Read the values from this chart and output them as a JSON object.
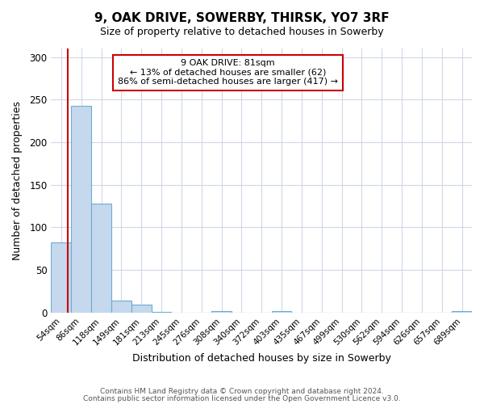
{
  "title": "9, OAK DRIVE, SOWERBY, THIRSK, YO7 3RF",
  "subtitle": "Size of property relative to detached houses in Sowerby",
  "xlabel": "Distribution of detached houses by size in Sowerby",
  "ylabel": "Number of detached properties",
  "bar_labels": [
    "54sqm",
    "86sqm",
    "118sqm",
    "149sqm",
    "181sqm",
    "213sqm",
    "245sqm",
    "276sqm",
    "308sqm",
    "340sqm",
    "372sqm",
    "403sqm",
    "435sqm",
    "467sqm",
    "499sqm",
    "530sqm",
    "562sqm",
    "594sqm",
    "626sqm",
    "657sqm",
    "689sqm"
  ],
  "bar_values": [
    82,
    243,
    128,
    14,
    9,
    1,
    0,
    0,
    2,
    0,
    0,
    2,
    0,
    0,
    0,
    0,
    0,
    0,
    0,
    0,
    2
  ],
  "bar_color": "#c5d8ed",
  "bar_edge_color": "#6aaed6",
  "marker_line_color": "#cc0000",
  "annotation_title": "9 OAK DRIVE: 81sqm",
  "annotation_line1": "← 13% of detached houses are smaller (62)",
  "annotation_line2": "86% of semi-detached houses are larger (417) →",
  "annotation_box_color": "#ffffff",
  "annotation_box_edge": "#cc0000",
  "ylim": [
    0,
    310
  ],
  "yticks": [
    0,
    50,
    100,
    150,
    200,
    250,
    300
  ],
  "footer1": "Contains HM Land Registry data © Crown copyright and database right 2024.",
  "footer2": "Contains public sector information licensed under the Open Government Licence v3.0.",
  "bg_color": "#ffffff",
  "grid_color": "#d0d8e8"
}
